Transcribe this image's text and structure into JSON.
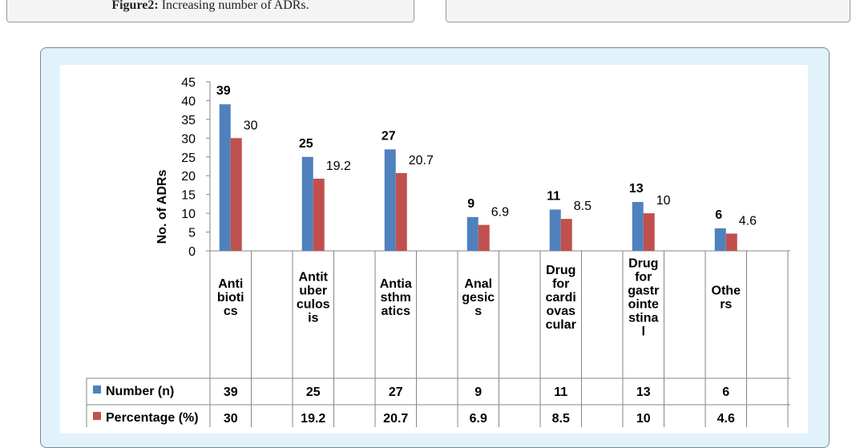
{
  "captions": {
    "left_label": "Figure2:",
    "left_text": " Increasing number of ADRs.",
    "right_text": ""
  },
  "chart_data": {
    "type": "bar",
    "title": "",
    "xlabel": "",
    "ylabel": "No. of ADRs",
    "ylim": [
      0,
      45
    ],
    "yticks": [
      0,
      5,
      10,
      15,
      20,
      25,
      30,
      35,
      40,
      45
    ],
    "grid": false,
    "legend": "data-table-left",
    "categories": [
      [
        "Anti",
        "bioti",
        "cs"
      ],
      [
        "Antit",
        "uber",
        "culos",
        "is"
      ],
      [
        "Antia",
        "sthm",
        "atics"
      ],
      [
        "Anal",
        "gesic",
        "s"
      ],
      [
        "Drug",
        "for",
        "cardi",
        "ovas",
        "cular"
      ],
      [
        "Drug",
        "for",
        "gastr",
        "ointe",
        "stina",
        "l"
      ],
      [
        "Othe",
        "rs"
      ]
    ],
    "series": [
      {
        "name": "Number (n)",
        "color": "#4f81bd",
        "values": [
          39,
          25,
          27,
          9,
          11,
          13,
          6
        ],
        "labels": [
          "39",
          "25",
          "27",
          "9",
          "11",
          "13",
          "6"
        ]
      },
      {
        "name": "Percentage (%)",
        "color": "#c0504d",
        "values": [
          30,
          19.2,
          20.7,
          6.9,
          8.5,
          10,
          4.6
        ],
        "labels": [
          "30",
          "19.2",
          "20.7",
          "6.9",
          "8.5",
          "10",
          "4.6"
        ]
      }
    ]
  }
}
